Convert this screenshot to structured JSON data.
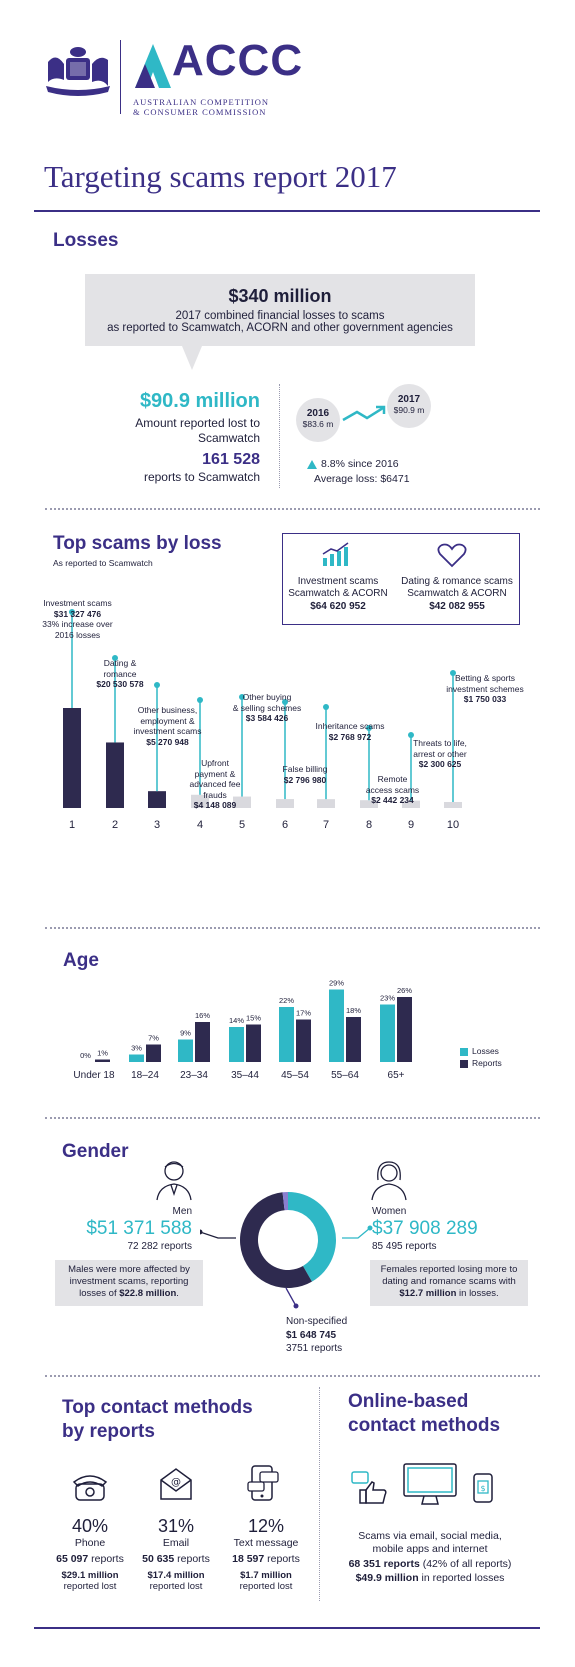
{
  "header": {
    "org_name_1": "AUSTRALIAN COMPETITION",
    "org_name_2": "& CONSUMER COMMISSION",
    "logo_text": "ACCC",
    "title": "Targeting scams report 2017"
  },
  "losses": {
    "heading": "Losses",
    "total_amount": "$340 million",
    "total_desc_1": "2017 combined financial losses to scams",
    "total_desc_2": "as reported to Scamwatch, ACORN and other government agencies",
    "scamwatch_amount": "$90.9 million",
    "scamwatch_desc_1": "Amount reported lost to",
    "scamwatch_desc_2": "Scamwatch",
    "reports_count": "161 528",
    "reports_desc": "reports to Scamwatch",
    "year_2016": "2016",
    "value_2016": "$83.6 m",
    "year_2017": "2017",
    "value_2017": "$90.9 m",
    "change": "8.8% since 2016",
    "average_loss": "Average loss: $6471"
  },
  "top_scams": {
    "heading": "Top scams by loss",
    "subheading": "As reported to Scamwatch",
    "box": {
      "item1_label_1": "Investment scams",
      "item1_label_2": "Scamwatch & ACORN",
      "item1_amount": "$64 620 952",
      "item2_label_1": "Dating & romance scams",
      "item2_label_2": "Scamwatch & ACORN",
      "item2_amount": "$42 082 955"
    },
    "labels": [
      {
        "lines": [
          "Investment scams"
        ],
        "amount": "$31 327 476",
        "extra": [
          "33% increase over",
          "2016 losses"
        ]
      },
      {
        "lines": [
          "Dating &",
          "romance"
        ],
        "amount": "$20 530 578",
        "extra": []
      },
      {
        "lines": [
          "Other business,",
          "employment &",
          "investment scams"
        ],
        "amount": "$5 270 948",
        "extra": []
      },
      {
        "lines": [
          "Upfront",
          "payment &",
          "advanced fee",
          "frauds"
        ],
        "amount": "$4 148 089",
        "extra": []
      },
      {
        "lines": [
          "Other buying",
          "& selling schemes"
        ],
        "amount": "$3 584 426",
        "extra": []
      },
      {
        "lines": [
          "False billing"
        ],
        "amount": "$2 796 980",
        "extra": []
      },
      {
        "lines": [
          "Inheritance scams"
        ],
        "amount": "$2 768 972",
        "extra": []
      },
      {
        "lines": [
          "Remote",
          "access scams"
        ],
        "amount": "$2 442 234",
        "extra": []
      },
      {
        "lines": [
          "Threats to life,",
          "arrest or other"
        ],
        "amount": "$2 300 625",
        "extra": []
      },
      {
        "lines": [
          "Betting & sports",
          "investment schemes"
        ],
        "amount": "$1 750 033",
        "extra": []
      }
    ]
  },
  "age": {
    "heading": "Age",
    "legend_losses": "Losses",
    "legend_reports": "Reports"
  },
  "gender": {
    "heading": "Gender",
    "men_label": "Men",
    "men_amount": "$51 371 588",
    "men_reports": "72 282 reports",
    "men_note_1": "Males were more affected by",
    "men_note_2": "investment scams, reporting",
    "men_note_3": "losses of ",
    "men_note_bold": "$22.8 million",
    "women_label": "Women",
    "women_amount": "$37 908 289",
    "women_reports": "85 495 reports",
    "women_note_1": "Females reported losing more to",
    "women_note_2": "dating and romance scams with",
    "women_note_bold": "$12.7 million",
    "women_note_3": " in losses.",
    "nonspec_label": "Non-specified",
    "nonspec_amount": "$1 648 745",
    "nonspec_reports": "3751 reports"
  },
  "contact": {
    "heading_1": "Top contact methods",
    "heading_2": "by reports",
    "methods": [
      {
        "pct": "40%",
        "name": "Phone",
        "reports_num": "65 097",
        "reports_word": " reports",
        "lost": "$29.1 million",
        "lost_word": "reported lost"
      },
      {
        "pct": "31%",
        "name": "Email",
        "reports_num": "50 635",
        "reports_word": " reports",
        "lost": "$17.4 million",
        "lost_word": "reported lost"
      },
      {
        "pct": "12%",
        "name": "Text message",
        "reports_num": "18 597",
        "reports_word": " reports",
        "lost": "$1.7 million",
        "lost_word": "reported lost"
      }
    ]
  },
  "online": {
    "heading_1": "Online-based",
    "heading_2": "contact methods",
    "desc_1": "Scams via email, social media,",
    "desc_2": "mobile apps and internet",
    "reports_bold": "68 351 reports",
    "reports_rest": " (42% of all reports)",
    "lost_bold": "$49.9 million",
    "lost_rest": " in reported losses"
  },
  "chart_data": [
    {
      "type": "bar",
      "title": "Top scams by loss",
      "categories": [
        "1",
        "2",
        "3",
        "4",
        "5",
        "6",
        "7",
        "8",
        "9",
        "10"
      ],
      "values": [
        31327476,
        20530578,
        5270948,
        4148089,
        3584426,
        2796980,
        2768972,
        2442234,
        2300625,
        1750033
      ],
      "colors": {
        "top3": "#2e2a4f",
        "rest": "#d9d9de",
        "stem": "#2fb8c6"
      }
    },
    {
      "type": "bar",
      "title": "Age",
      "categories": [
        "Under 18",
        "18–24",
        "23–34",
        "35–44",
        "45–54",
        "55–64",
        "65+"
      ],
      "series": [
        {
          "name": "Losses",
          "values": [
            0,
            3,
            9,
            14,
            22,
            29,
            23
          ],
          "labels": [
            "0%",
            "3%",
            "9%",
            "14%",
            "22%",
            "29%",
            "23%"
          ],
          "color": "#2fb8c6"
        },
        {
          "name": "Reports",
          "values": [
            1,
            7,
            16,
            15,
            17,
            18,
            26
          ],
          "labels": [
            "1%",
            "7%",
            "16%",
            "15%",
            "17%",
            "18%",
            "26%"
          ],
          "color": "#2e2a4f"
        }
      ]
    },
    {
      "type": "pie",
      "title": "Gender",
      "categories": [
        "Women",
        "Men",
        "Non-specified"
      ],
      "values": [
        37908289,
        51371588,
        1648745
      ],
      "colors": [
        "#2fb8c6",
        "#2e2a4f",
        "#8a7fd0"
      ]
    }
  ]
}
